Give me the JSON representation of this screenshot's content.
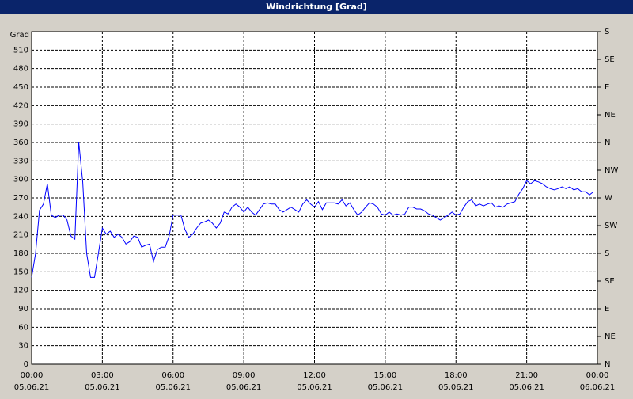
{
  "chart_data": {
    "type": "line",
    "title": "Windrichtung [Grad]",
    "ylabel": "Grad",
    "color": "#0000ff",
    "grid": true,
    "xlim": [
      0,
      1440
    ],
    "xticks": [
      {
        "value": 0,
        "label": "00:00",
        "date": "05.06.21"
      },
      {
        "value": 180,
        "label": "03:00",
        "date": "05.06.21"
      },
      {
        "value": 360,
        "label": "06:00",
        "date": "05.06.21"
      },
      {
        "value": 540,
        "label": "09:00",
        "date": "05.06.21"
      },
      {
        "value": 720,
        "label": "12:00",
        "date": "05.06.21"
      },
      {
        "value": 900,
        "label": "15:00",
        "date": "05.06.21"
      },
      {
        "value": 1080,
        "label": "18:00",
        "date": "05.06.21"
      },
      {
        "value": 1260,
        "label": "21:00",
        "date": "05.06.21"
      },
      {
        "value": 1440,
        "label": "00:00",
        "date": "06.06.21"
      }
    ],
    "ylim": [
      0,
      540
    ],
    "yticks": [
      0,
      30,
      60,
      90,
      120,
      150,
      180,
      210,
      240,
      270,
      300,
      330,
      360,
      390,
      420,
      450,
      480,
      510
    ],
    "y2lim": [
      0,
      540
    ],
    "y2ticks": [
      {
        "value": 0,
        "label": "N"
      },
      {
        "value": 45,
        "label": "NE"
      },
      {
        "value": 90,
        "label": "E"
      },
      {
        "value": 135,
        "label": "SE"
      },
      {
        "value": 180,
        "label": "S"
      },
      {
        "value": 225,
        "label": "SW"
      },
      {
        "value": 270,
        "label": "W"
      },
      {
        "value": 315,
        "label": "NW"
      },
      {
        "value": 360,
        "label": "N"
      },
      {
        "value": 405,
        "label": "NE"
      },
      {
        "value": 450,
        "label": "E"
      },
      {
        "value": 495,
        "label": "SE"
      },
      {
        "value": 540,
        "label": "S"
      }
    ],
    "x": [
      0,
      10,
      20,
      30,
      40,
      50,
      60,
      70,
      80,
      90,
      100,
      110,
      120,
      130,
      140,
      150,
      160,
      170,
      180,
      190,
      200,
      210,
      220,
      230,
      240,
      250,
      260,
      270,
      280,
      290,
      300,
      310,
      320,
      330,
      340,
      350,
      360,
      370,
      380,
      390,
      400,
      410,
      420,
      430,
      440,
      450,
      460,
      470,
      480,
      490,
      500,
      510,
      520,
      530,
      540,
      550,
      560,
      570,
      580,
      590,
      600,
      610,
      620,
      630,
      640,
      650,
      660,
      670,
      680,
      690,
      700,
      710,
      720,
      730,
      740,
      750,
      760,
      770,
      780,
      790,
      800,
      810,
      820,
      830,
      840,
      850,
      860,
      870,
      880,
      890,
      900,
      910,
      920,
      930,
      940,
      950,
      960,
      970,
      980,
      990,
      1000,
      1010,
      1020,
      1030,
      1040,
      1050,
      1060,
      1070,
      1080,
      1090,
      1100,
      1110,
      1120,
      1130,
      1140,
      1150,
      1160,
      1170,
      1180,
      1190,
      1200,
      1210,
      1220,
      1230,
      1240,
      1250,
      1260,
      1270,
      1280,
      1290,
      1300,
      1310,
      1320,
      1330,
      1340,
      1350,
      1360,
      1370,
      1380,
      1390,
      1400,
      1410,
      1420,
      1430
    ],
    "values": [
      141,
      180,
      250,
      260,
      293,
      242,
      238,
      242,
      242,
      234,
      208,
      203,
      360,
      296,
      180,
      141,
      141,
      180,
      221,
      211,
      216,
      206,
      211,
      206,
      195,
      199,
      208,
      206,
      190,
      193,
      195,
      167,
      186,
      190,
      190,
      208,
      242,
      242,
      242,
      219,
      206,
      211,
      221,
      229,
      231,
      234,
      229,
      221,
      229,
      247,
      244,
      255,
      260,
      255,
      247,
      255,
      247,
      242,
      251,
      260,
      262,
      260,
      260,
      251,
      247,
      251,
      255,
      251,
      247,
      260,
      267,
      260,
      255,
      264,
      251,
      262,
      262,
      262,
      260,
      267,
      257,
      262,
      251,
      242,
      247,
      255,
      262,
      260,
      255,
      244,
      242,
      247,
      242,
      244,
      242,
      244,
      255,
      255,
      252,
      252,
      249,
      244,
      242,
      238,
      234,
      238,
      242,
      247,
      242,
      244,
      255,
      264,
      267,
      257,
      260,
      257,
      260,
      262,
      255,
      257,
      255,
      260,
      262,
      264,
      276,
      285,
      298,
      293,
      298,
      296,
      293,
      288,
      285,
      283,
      285,
      288,
      285,
      288,
      283,
      285,
      280,
      280,
      275,
      280
    ]
  }
}
